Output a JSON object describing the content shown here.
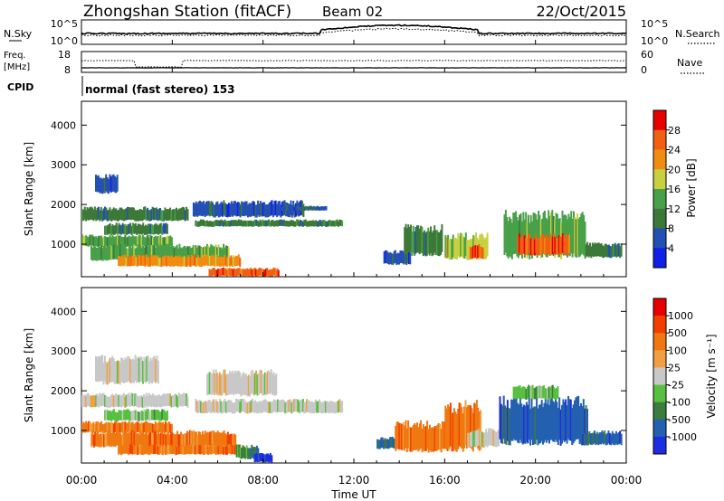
{
  "header": {
    "station_title": "Zhongshan Station (fitACF)",
    "beam": "Beam 02",
    "date": "22/Oct/2015"
  },
  "summary_panels": {
    "nsky_label": "N.Sky",
    "nsky_ticks": [
      "10^5",
      "10^0"
    ],
    "nsearch_label": "N.Search",
    "nsearch_ticks": [
      "10^5",
      "10^0"
    ],
    "freq_label": "Freq.",
    "freq_unit": "[MHz]",
    "freq_ticks": [
      "18",
      "8"
    ],
    "nave_label": "Nave",
    "nave_ticks": [
      "60",
      "0"
    ],
    "cpid_label": "CPID",
    "cpid_text": "normal (fast stereo) 153"
  },
  "chart_data": [
    {
      "type": "heatmap",
      "panel": "power",
      "ylabel": "Slant Range [km]",
      "ylim": [
        180,
        4600
      ],
      "yticks": [
        "1000",
        "2000",
        "3000",
        "4000"
      ],
      "colorbar_label": "Power [dB]",
      "colorbar_ticks": [
        "4",
        "8",
        "12",
        "16",
        "20",
        "24",
        "28"
      ],
      "colorbar_colors": [
        "#1020e8",
        "#2450b4",
        "#3c7838",
        "#48a048",
        "#c8d040",
        "#f08c10",
        "#f06010",
        "#e80000"
      ],
      "regions": [
        {
          "t0": 0.0,
          "t1": 4.7,
          "r0": 1600,
          "r1": 1900,
          "c": 2
        },
        {
          "t0": 1.0,
          "t1": 3.8,
          "r0": 1250,
          "r1": 1500,
          "c": 2
        },
        {
          "t0": 0.0,
          "t1": 4.0,
          "r0": 950,
          "r1": 1200,
          "c": 3
        },
        {
          "t0": 0.4,
          "t1": 6.5,
          "r0": 600,
          "r1": 950,
          "c": 3
        },
        {
          "t0": 1.6,
          "t1": 7.0,
          "r0": 450,
          "r1": 700,
          "c": 5
        },
        {
          "t0": 5.6,
          "t1": 8.7,
          "r0": 200,
          "r1": 380,
          "c": 6
        },
        {
          "t0": 0.6,
          "t1": 1.6,
          "r0": 2300,
          "r1": 2700,
          "c": 1
        },
        {
          "t0": 5.0,
          "t1": 11.5,
          "r0": 1450,
          "r1": 1600,
          "c": 2
        },
        {
          "t0": 4.9,
          "t1": 9.8,
          "r0": 1700,
          "r1": 2050,
          "c": 1
        },
        {
          "t0": 8.8,
          "t1": 10.8,
          "r0": 1850,
          "r1": 1950,
          "c": 1
        },
        {
          "t0": 14.2,
          "t1": 15.9,
          "r0": 750,
          "r1": 1400,
          "c": 2
        },
        {
          "t0": 16.0,
          "t1": 17.9,
          "r0": 650,
          "r1": 1200,
          "c": 4
        },
        {
          "t0": 17.1,
          "t1": 17.7,
          "r0": 650,
          "r1": 950,
          "c": 6
        },
        {
          "t0": 18.6,
          "t1": 22.2,
          "r0": 700,
          "r1": 1700,
          "c": 3
        },
        {
          "t0": 19.2,
          "t1": 21.5,
          "r0": 750,
          "r1": 1200,
          "c": 6
        },
        {
          "t0": 22.2,
          "t1": 23.8,
          "r0": 680,
          "r1": 1000,
          "c": 2
        },
        {
          "t0": 13.3,
          "t1": 14.5,
          "r0": 500,
          "r1": 800,
          "c": 1
        }
      ]
    },
    {
      "type": "heatmap",
      "panel": "velocity",
      "xlabel": "Time UT",
      "xticks": [
        "00:00",
        "04:00",
        "08:00",
        "12:00",
        "16:00",
        "20:00",
        "00:00"
      ],
      "xlim": [
        0,
        24
      ],
      "ylabel": "Slant Range [km]",
      "ylim": [
        180,
        4600
      ],
      "yticks": [
        "1000",
        "2000",
        "3000",
        "4000"
      ],
      "colorbar_label": "Velocity [m s⁻¹]",
      "colorbar_ticks": [
        "1000",
        "500",
        "100",
        "25",
        "-25",
        "-100",
        "-500",
        "-1000"
      ],
      "colorbar_colors": [
        "#1c2ee0",
        "#2460b0",
        "#3c7c3c",
        "#58c040",
        "#c8c8c8",
        "#f0a040",
        "#f07810",
        "#f04000",
        "#e80000"
      ],
      "regions": [
        {
          "t0": 0.0,
          "t1": 4.7,
          "r0": 1600,
          "r1": 1900,
          "c": 4
        },
        {
          "t0": 0.6,
          "t1": 3.4,
          "r0": 2200,
          "r1": 2800,
          "c": 4
        },
        {
          "t0": 1.0,
          "t1": 3.8,
          "r0": 1250,
          "r1": 1500,
          "c": 3
        },
        {
          "t0": 0.0,
          "t1": 4.0,
          "r0": 950,
          "r1": 1200,
          "c": 6
        },
        {
          "t0": 0.4,
          "t1": 6.8,
          "r0": 600,
          "r1": 950,
          "c": 6
        },
        {
          "t0": 1.6,
          "t1": 7.0,
          "r0": 400,
          "r1": 620,
          "c": 6
        },
        {
          "t0": 6.8,
          "t1": 7.8,
          "r0": 300,
          "r1": 600,
          "c": 2
        },
        {
          "t0": 7.6,
          "t1": 8.4,
          "r0": 200,
          "r1": 400,
          "c": 0
        },
        {
          "t0": 5.0,
          "t1": 11.5,
          "r0": 1450,
          "r1": 1750,
          "c": 4
        },
        {
          "t0": 5.5,
          "t1": 8.6,
          "r0": 1900,
          "r1": 2450,
          "c": 4
        },
        {
          "t0": 13.0,
          "t1": 14.0,
          "r0": 550,
          "r1": 800,
          "c": 1
        },
        {
          "t0": 13.8,
          "t1": 16.2,
          "r0": 500,
          "r1": 1150,
          "c": 6
        },
        {
          "t0": 16.0,
          "t1": 17.6,
          "r0": 550,
          "r1": 1600,
          "c": 6
        },
        {
          "t0": 17.0,
          "t1": 18.4,
          "r0": 600,
          "r1": 1000,
          "c": 4
        },
        {
          "t0": 18.4,
          "t1": 22.3,
          "r0": 700,
          "r1": 1700,
          "c": 1
        },
        {
          "t0": 19.0,
          "t1": 21.0,
          "r0": 1800,
          "r1": 2100,
          "c": 3
        },
        {
          "t0": 22.0,
          "t1": 23.8,
          "r0": 650,
          "r1": 950,
          "c": 1
        }
      ]
    }
  ]
}
